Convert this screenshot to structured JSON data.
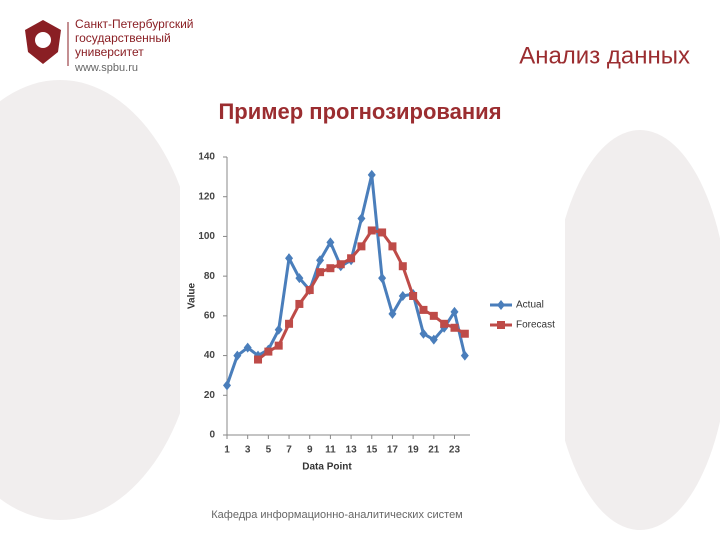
{
  "header": {
    "university_lines": [
      "Санкт-Петербургский",
      "государственный",
      "университет"
    ],
    "website": "www.spbu.ru",
    "section_title": "Анализ данных"
  },
  "footer": {
    "text": "Кафедра информационно-аналитических систем"
  },
  "chart_data": {
    "type": "line",
    "title": "Пример прогнозирования",
    "x_label": "Data Point",
    "y_label": "Value",
    "x": [
      1,
      2,
      3,
      4,
      5,
      6,
      7,
      8,
      9,
      10,
      11,
      12,
      13,
      14,
      15,
      16,
      17,
      18,
      19,
      20,
      21,
      22,
      23,
      24
    ],
    "series": [
      {
        "name": "Actual",
        "color": "#4a7ebb",
        "marker": "diamond",
        "values": [
          25,
          40,
          44,
          40,
          43,
          53,
          89,
          79,
          73,
          88,
          97,
          85,
          88,
          109,
          131,
          79,
          61,
          70,
          71,
          51,
          48,
          54,
          62,
          40
        ]
      },
      {
        "name": "Forecast",
        "color": "#be4b48",
        "marker": "square",
        "values": [
          null,
          null,
          null,
          38,
          42,
          45,
          56,
          66,
          73,
          82,
          84,
          86,
          89,
          95,
          103,
          102,
          95,
          85,
          70,
          63,
          60,
          56,
          54,
          51
        ]
      }
    ],
    "xlim": [
      1,
      24.5
    ],
    "xticks": [
      1,
      3,
      5,
      7,
      9,
      11,
      13,
      15,
      17,
      19,
      21,
      23
    ],
    "ylim": [
      0,
      140
    ],
    "yticks": [
      0,
      20,
      40,
      60,
      80,
      100,
      120,
      140
    ],
    "grid": false,
    "legend": "right"
  }
}
